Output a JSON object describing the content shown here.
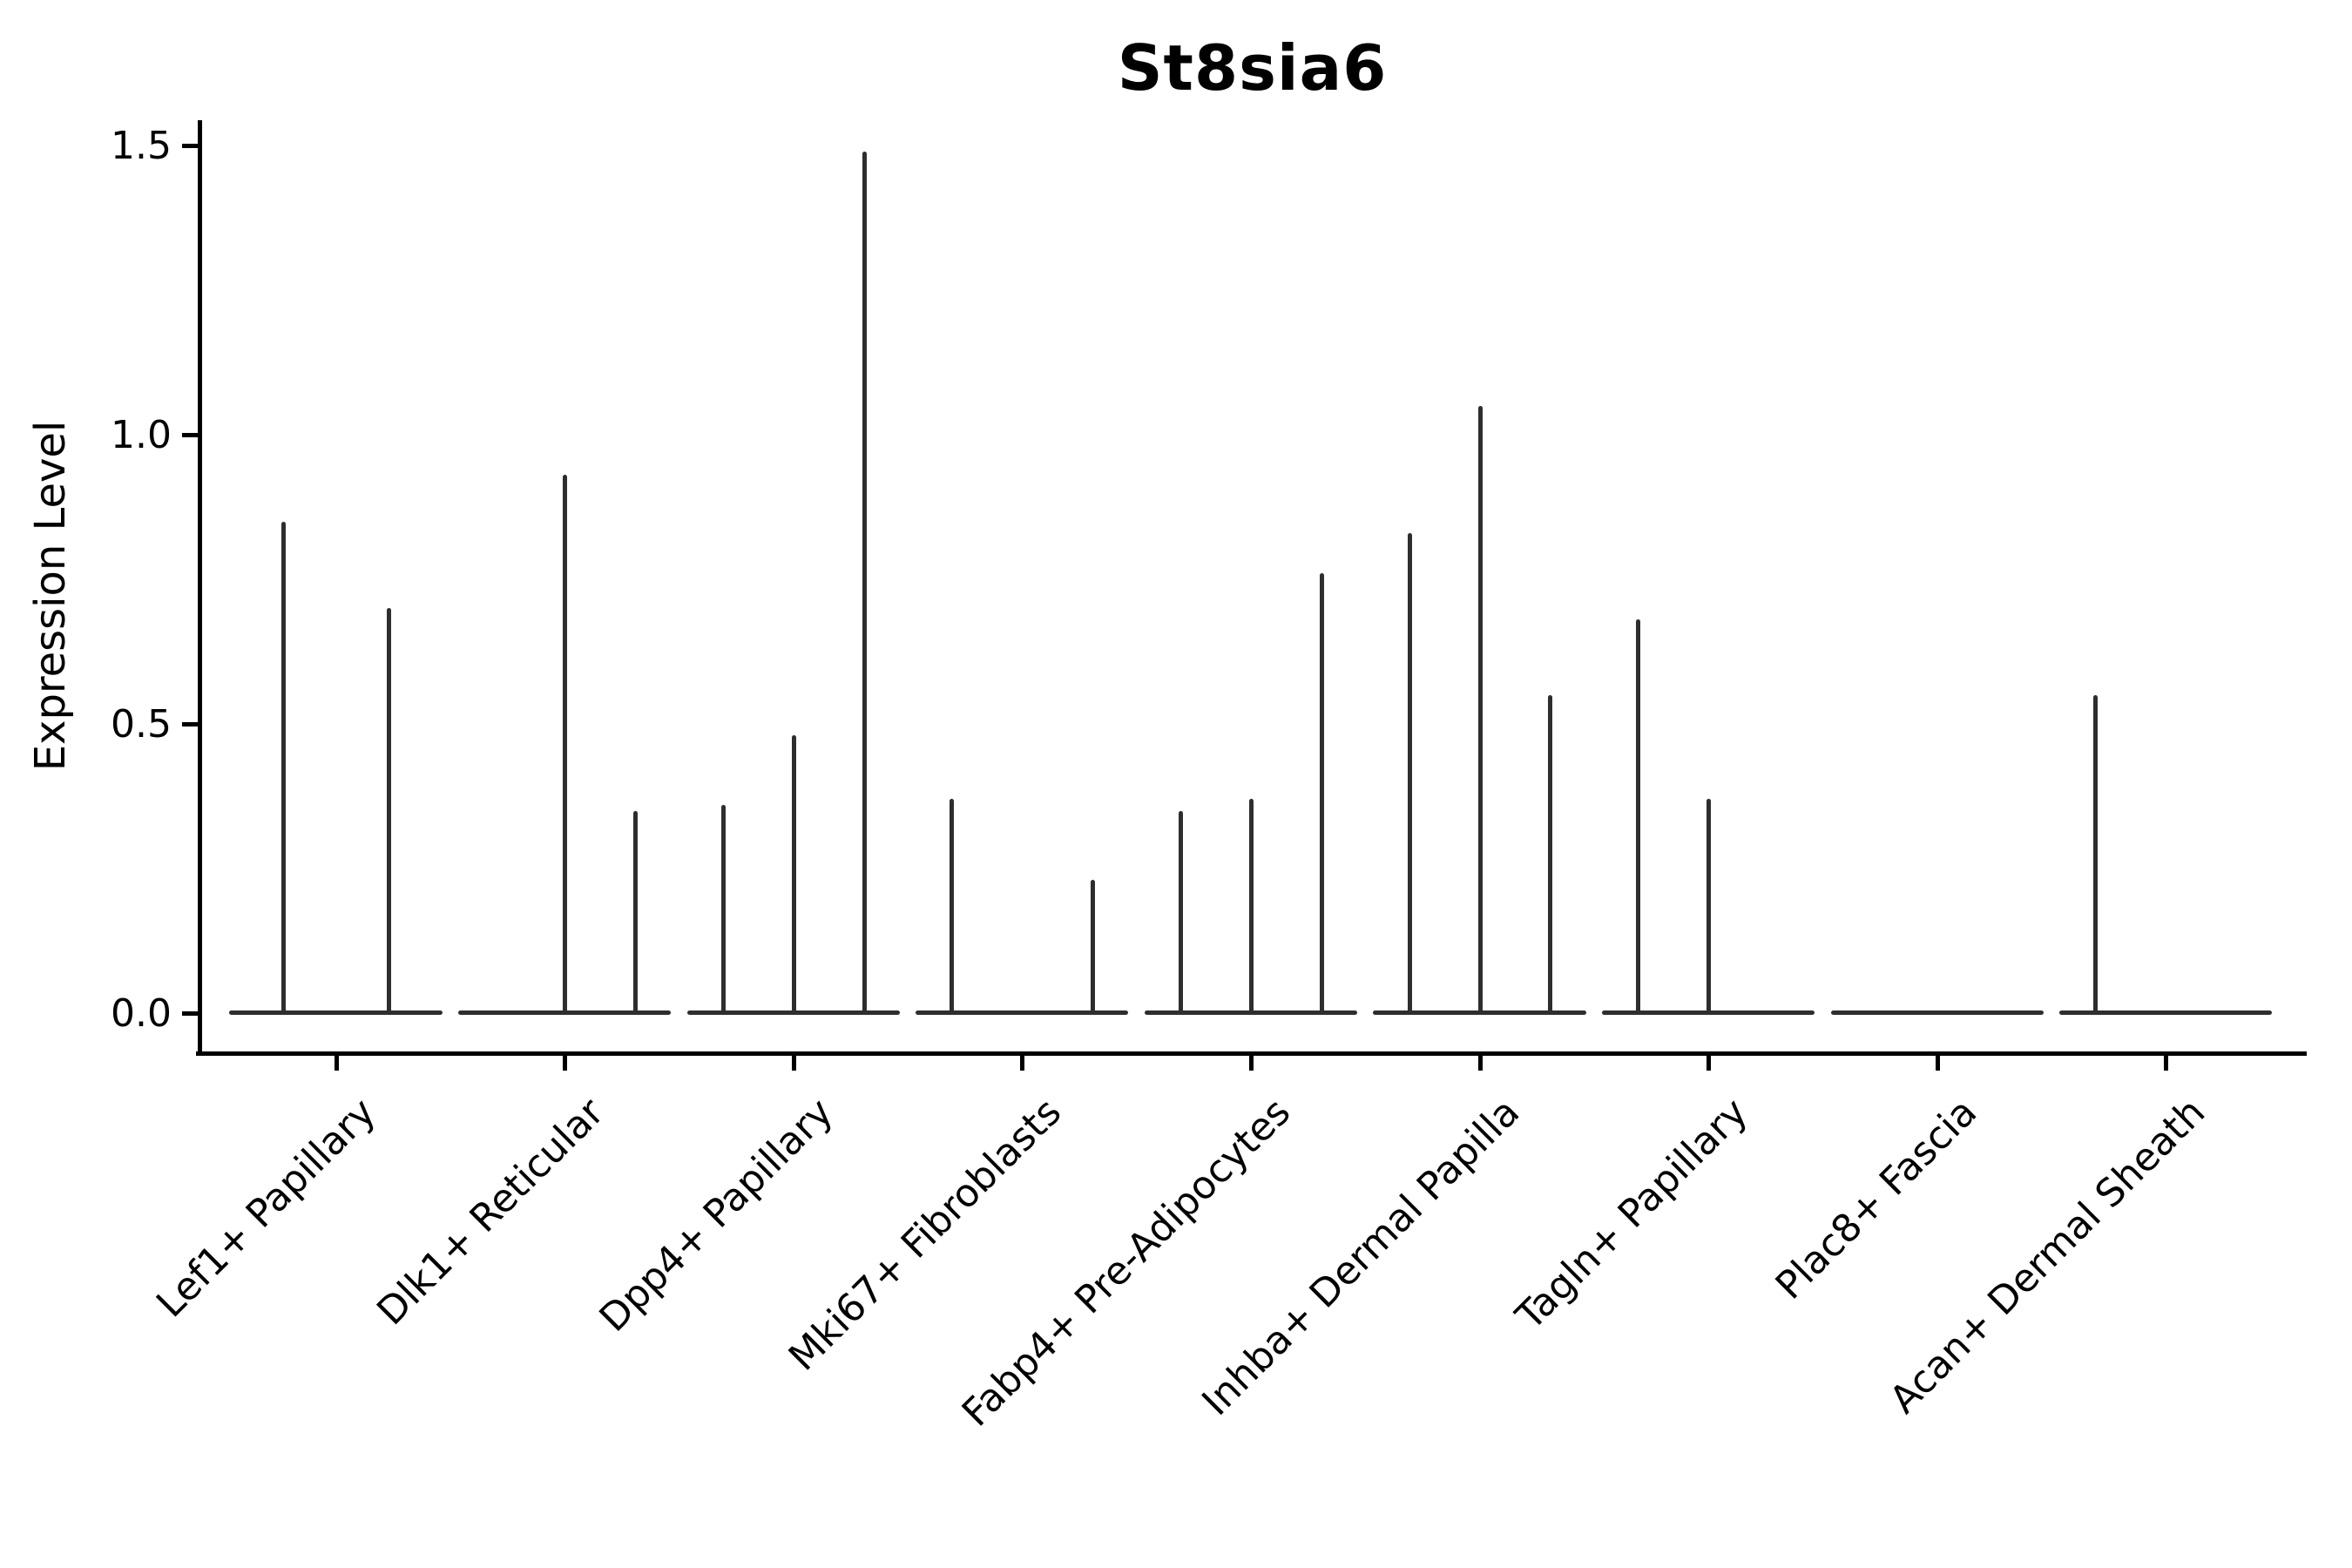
{
  "chart_data": {
    "type": "violin",
    "title": "St8sia6",
    "xlabel": "",
    "ylabel": "Expression Level",
    "ylim": [
      -0.07,
      1.54
    ],
    "yticks": [
      0.0,
      0.5,
      1.0,
      1.5
    ],
    "ytick_labels": [
      "0.0",
      "0.5",
      "1.0",
      "1.5"
    ],
    "grid": false,
    "legend": false,
    "categories": [
      "Lef1+ Papillary",
      "Dlk1+ Reticular",
      "Dpp4+ Papillary",
      "Mki67+ Fibroblasts",
      "Fabp4+ Pre-Adipocytes",
      "Inhba+ Dermal Papilla",
      "Tagln+ Papillary",
      "Plac8+ Fascia",
      "Acan+ Dermal Sheath"
    ],
    "description": "Collapsed violins along a zero-expression baseline; each thin vertical spike marks the maximum expression reached by a sub-violin within the category.",
    "groups": [
      {
        "category": "Lef1+ Papillary",
        "violins": [
          {
            "x_offset": -0.232,
            "peak_expression": 0.85
          },
          {
            "x_offset": 0.232,
            "peak_expression": 0.7
          }
        ]
      },
      {
        "category": "Dlk1+ Reticular",
        "violins": [
          {
            "x_offset": 0.0,
            "peak_expression": 0.93
          },
          {
            "x_offset": 0.308,
            "peak_expression": 0.35
          }
        ]
      },
      {
        "category": "Dpp4+ Papillary",
        "violins": [
          {
            "x_offset": -0.308,
            "peak_expression": 0.36
          },
          {
            "x_offset": 0.0,
            "peak_expression": 0.48
          },
          {
            "x_offset": 0.308,
            "peak_expression": 1.49
          }
        ]
      },
      {
        "category": "Mki67+ Fibroblasts",
        "violins": [
          {
            "x_offset": -0.308,
            "peak_expression": 0.37
          },
          {
            "x_offset": 0.308,
            "peak_expression": 0.23
          }
        ]
      },
      {
        "category": "Fabp4+ Pre-Adipocytes",
        "violins": [
          {
            "x_offset": -0.308,
            "peak_expression": 0.35
          },
          {
            "x_offset": 0.0,
            "peak_expression": 0.37
          },
          {
            "x_offset": 0.308,
            "peak_expression": 0.76
          }
        ]
      },
      {
        "category": "Inhba+ Dermal Papilla",
        "violins": [
          {
            "x_offset": -0.308,
            "peak_expression": 0.83
          },
          {
            "x_offset": 0.0,
            "peak_expression": 1.05
          },
          {
            "x_offset": 0.308,
            "peak_expression": 0.55
          }
        ]
      },
      {
        "category": "Tagln+ Papillary",
        "violins": [
          {
            "x_offset": -0.308,
            "peak_expression": 0.68
          },
          {
            "x_offset": 0.0,
            "peak_expression": 0.37
          }
        ]
      },
      {
        "category": "Plac8+ Fascia",
        "violins": []
      },
      {
        "category": "Acan+ Dermal Sheath",
        "violins": [
          {
            "x_offset": -0.308,
            "peak_expression": 0.55
          }
        ]
      }
    ],
    "baseline_halfwidth_fraction": 0.465,
    "colors": {
      "violin_line": "#2e2e2e",
      "axis": "#000000",
      "background": "#ffffff"
    }
  }
}
